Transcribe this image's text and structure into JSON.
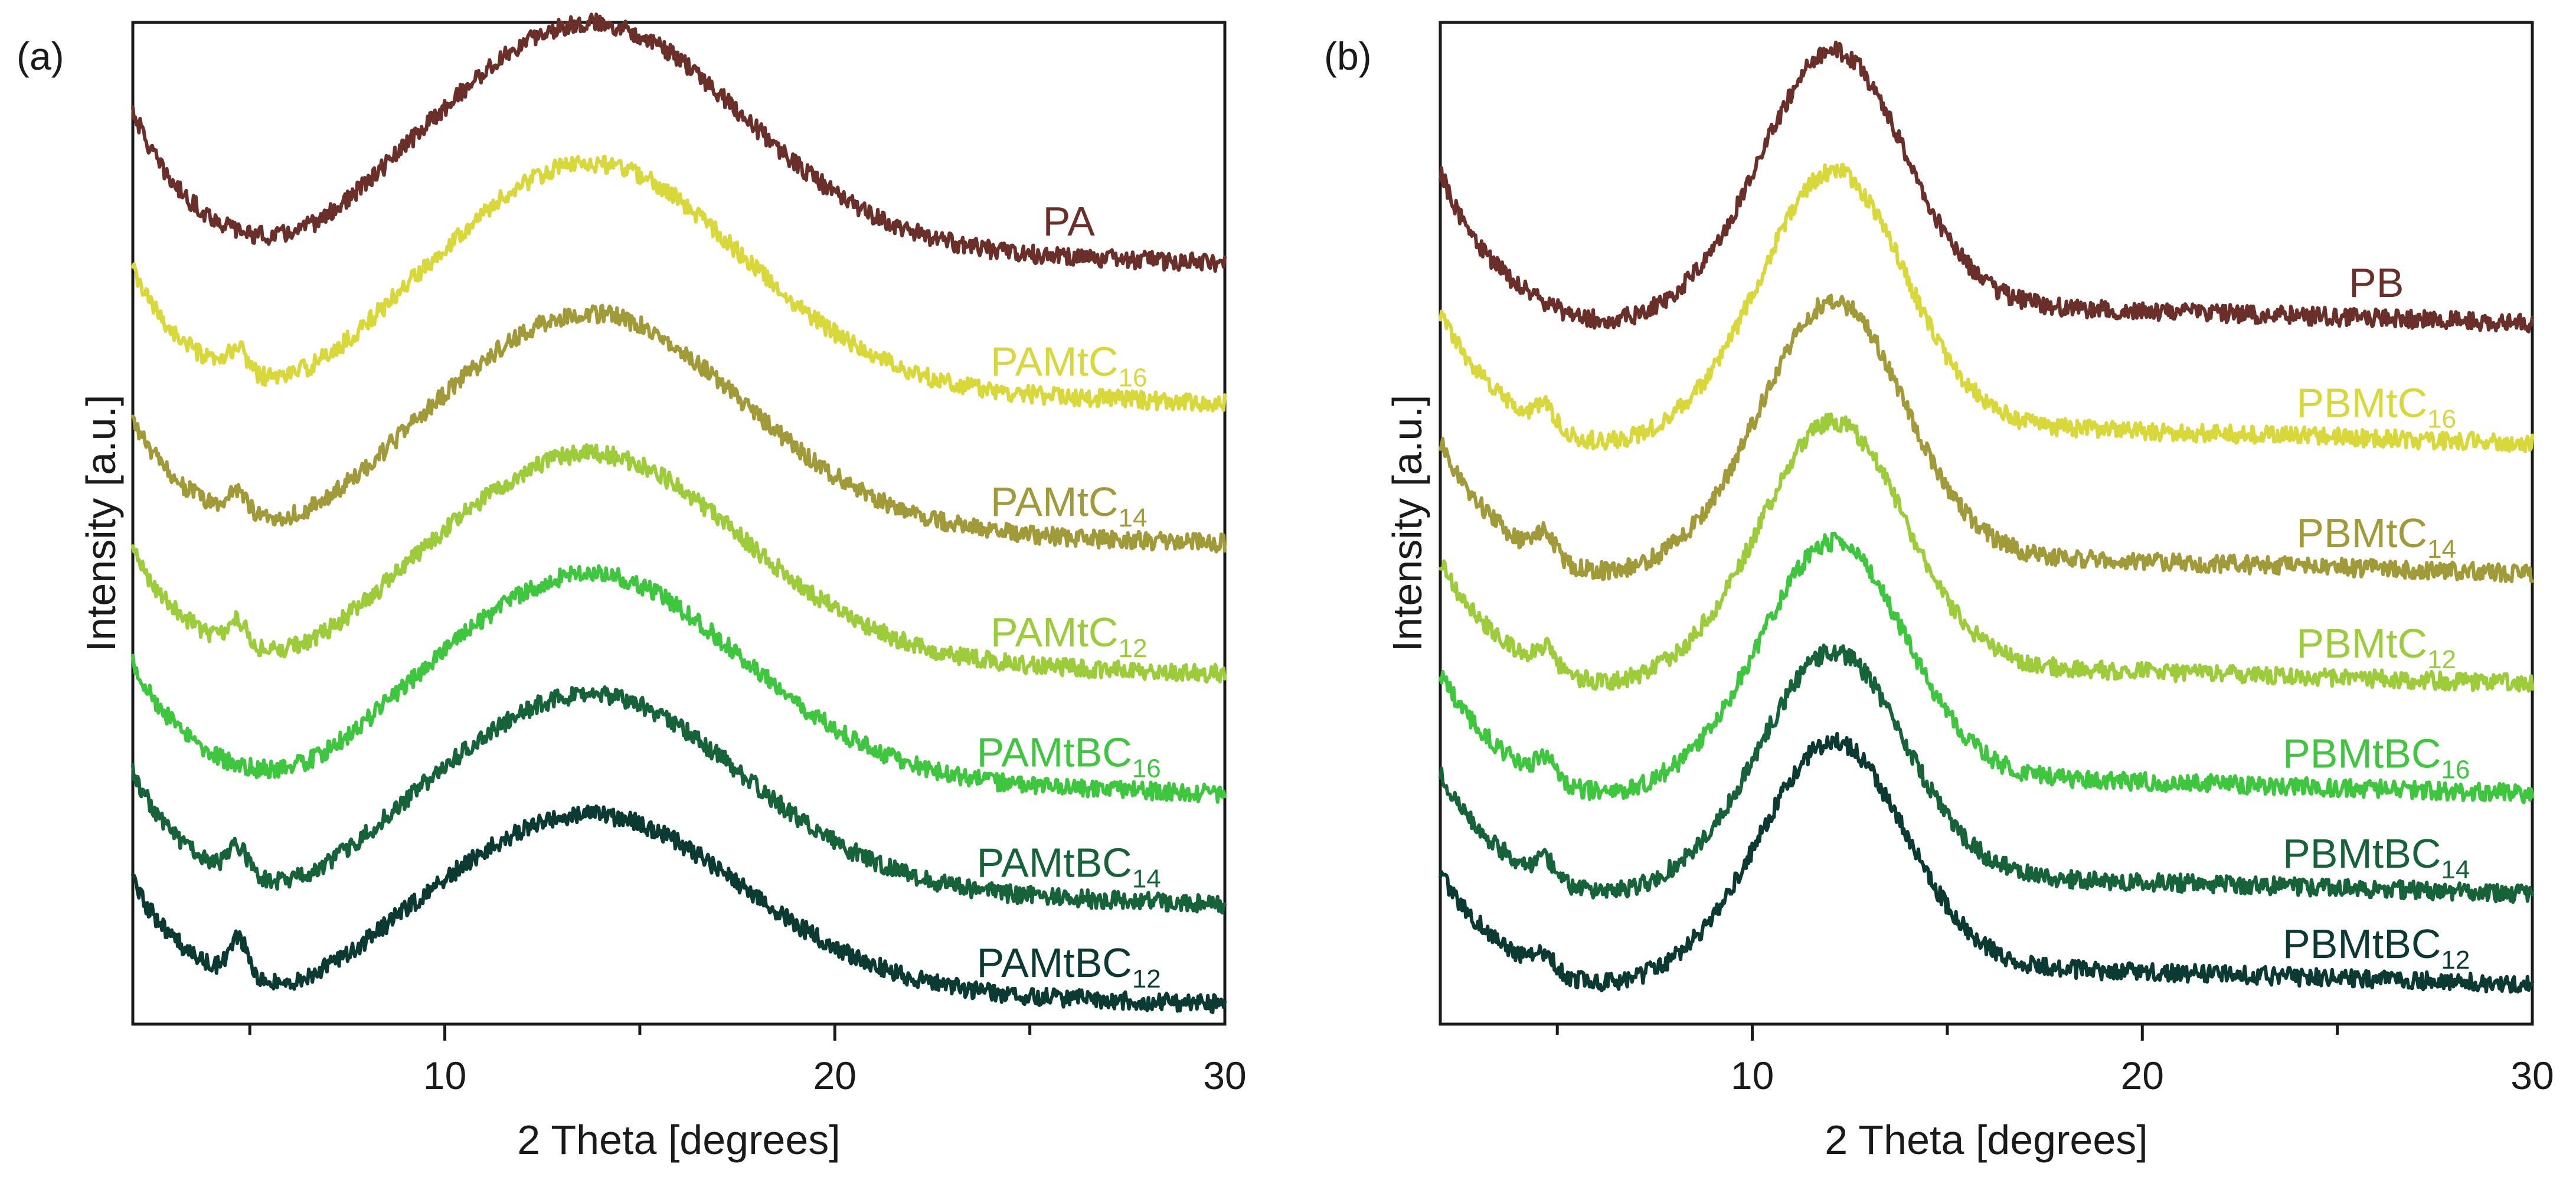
{
  "chart_data": [
    {
      "type": "line",
      "panel_label": "(a)",
      "xlabel": "2 Theta [degrees]",
      "ylabel": "Intensity [a.u.]",
      "xlim": [
        2,
        30
      ],
      "ylim": [
        0,
        100
      ],
      "x_ticks": [
        10,
        20,
        30
      ],
      "y_ticks_shown": false,
      "peak_center": 13.8,
      "series": [
        {
          "name": "PA",
          "base": "PA",
          "sub": "",
          "color": "#6b2f2a",
          "y_end": 76,
          "peak_height": 22,
          "peak_width": 3.8,
          "small_peak": 0,
          "min_rise": 12
        },
        {
          "name": "PAMtC16",
          "base": "PAMtC",
          "sub": "16",
          "color": "#d9d83a",
          "y_end": 62,
          "peak_height": 22,
          "peak_width": 3.8,
          "small_peak": 2.5,
          "min_rise": 10
        },
        {
          "name": "PAMtC14",
          "base": "PAMtC",
          "sub": "14",
          "color": "#a19a38",
          "y_end": 48,
          "peak_height": 21,
          "peak_width": 3.8,
          "small_peak": 2.5,
          "min_rise": 9
        },
        {
          "name": "PAMtC12",
          "base": "PAMtC",
          "sub": "12",
          "color": "#9ccc3a",
          "y_end": 35,
          "peak_height": 20,
          "peak_width": 3.8,
          "small_peak": 2.5,
          "min_rise": 9
        },
        {
          "name": "PAMtBC16",
          "base": "PAMtBC",
          "sub": "16",
          "color": "#3fc63f",
          "y_end": 23,
          "peak_height": 20,
          "peak_width": 3.8,
          "small_peak": 0,
          "min_rise": 10
        },
        {
          "name": "PAMtBC14",
          "base": "PAMtBC",
          "sub": "14",
          "color": "#16633a",
          "y_end": 12,
          "peak_height": 19,
          "peak_width": 3.8,
          "small_peak": 3,
          "min_rise": 10
        },
        {
          "name": "PAMtBC12",
          "base": "PAMtBC",
          "sub": "12",
          "color": "#0b3a33",
          "y_end": 2,
          "peak_height": 17,
          "peak_width": 3.8,
          "small_peak": 4,
          "min_rise": 9
        }
      ]
    },
    {
      "type": "line",
      "panel_label": "(b)",
      "xlabel": "2 Theta [degrees]",
      "ylabel": "Intensity [a.u.]",
      "xlim": [
        2,
        30
      ],
      "ylim": [
        0,
        100
      ],
      "x_ticks": [
        10,
        20,
        30
      ],
      "y_ticks_shown": false,
      "peak_center": 12.1,
      "series": [
        {
          "name": "PB",
          "base": "PB",
          "sub": "",
          "color": "#6b2f2a",
          "y_end": 70,
          "peak_height": 25,
          "peak_width": 1.8,
          "small_peak": 0,
          "min_rise": 12
        },
        {
          "name": "PBMtC16",
          "base": "PBMtC",
          "sub": "16",
          "color": "#d9d83a",
          "y_end": 58,
          "peak_height": 25,
          "peak_width": 1.8,
          "small_peak": 2,
          "min_rise": 10
        },
        {
          "name": "PBMtC14",
          "base": "PBMtC",
          "sub": "14",
          "color": "#a19a38",
          "y_end": 45,
          "peak_height": 25,
          "peak_width": 1.8,
          "small_peak": 2.5,
          "min_rise": 10
        },
        {
          "name": "PBMtC12",
          "base": "PBMtC",
          "sub": "12",
          "color": "#9ccc3a",
          "y_end": 34,
          "peak_height": 24,
          "peak_width": 1.8,
          "small_peak": 2,
          "min_rise": 9
        },
        {
          "name": "PBMtBC16",
          "base": "PBMtBC",
          "sub": "16",
          "color": "#3fc63f",
          "y_end": 23,
          "peak_height": 23,
          "peak_width": 1.8,
          "small_peak": 2,
          "min_rise": 9
        },
        {
          "name": "PBMtBC14",
          "base": "PBMtBC",
          "sub": "14",
          "color": "#16633a",
          "y_end": 13,
          "peak_height": 22,
          "peak_width": 1.8,
          "small_peak": 2,
          "min_rise": 9
        },
        {
          "name": "PBMtBC12",
          "base": "PBMtBC",
          "sub": "12",
          "color": "#0b3a33",
          "y_end": 4,
          "peak_height": 22,
          "peak_width": 1.8,
          "small_peak": 1.5,
          "min_rise": 8
        }
      ]
    }
  ]
}
